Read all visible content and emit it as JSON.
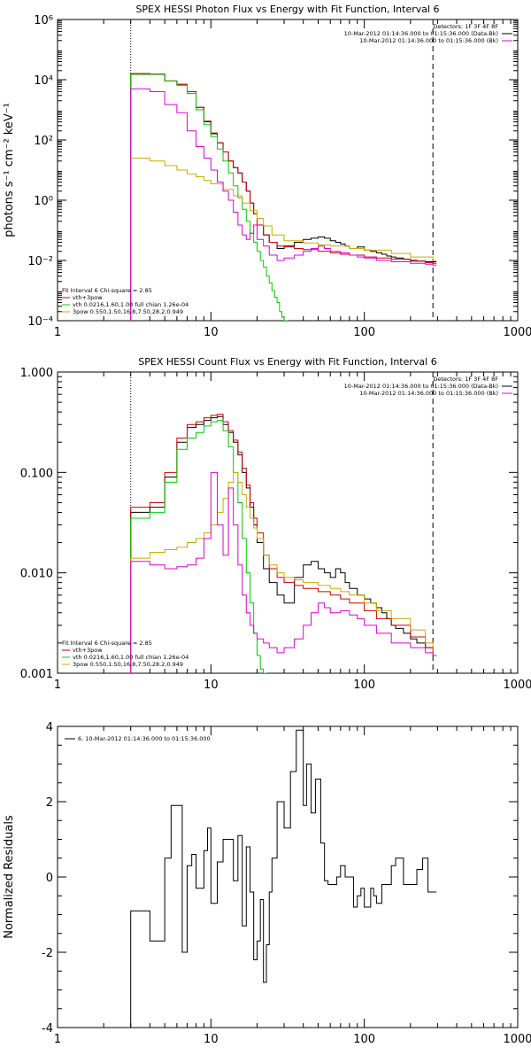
{
  "chart_data": [
    {
      "type": "line",
      "title": "SPEX HESSI Photon Flux vs Energy with Fit Function, Interval 6",
      "ylabel": "photons s⁻¹ cm⁻² keV⁻¹",
      "xlabel": "",
      "xscale": "log",
      "yscale": "log",
      "xlim": [
        1,
        1000
      ],
      "ylim": [
        0.0001,
        1000000
      ],
      "x_ticks": [
        1,
        10,
        100,
        1000
      ],
      "x_tick_labels": [
        "1",
        "10",
        "100",
        "1000"
      ],
      "y_ticks": [
        0.0001,
        0.01,
        1,
        100,
        10000,
        1000000
      ],
      "y_tick_labels": [
        "10⁻⁴",
        "10⁻²",
        "10⁰",
        "10²",
        "10⁴",
        "10⁶"
      ],
      "vlines": [
        {
          "x": 3.0,
          "style": "dotted"
        },
        {
          "x": 280,
          "style": "dashed"
        }
      ],
      "legend_tr": [
        "Detectors: 1F 3F 4F 8F",
        "10-Mar-2012 01:14:36.000 to 01:15:36.000 (Data-Bk)",
        "10-Mar-2012 01:14:36.000 to 01:15:36.000 (Bk)"
      ],
      "legend_bl": [
        "Fit Interval 6   Chi-square = 2.85",
        "vth+3pow",
        "vth 0.0216,1.60,1.00  full chian 1.26e-04",
        "3pow 0.550,1.50,16.8,7.50,28.2,0.949"
      ],
      "series": [
        {
          "name": "10-Mar-2012 01:14:36.000 to 01:15:36.000 (Data-Bk)",
          "color": "#000000",
          "x": [
            3.0,
            4.0,
            5.0,
            6.0,
            7.0,
            8.0,
            9.0,
            10.0,
            11.0,
            12.0,
            13.0,
            14.0,
            15.0,
            16.0,
            17.0,
            18.0,
            19.0,
            20.0,
            22.0,
            24.0,
            27.0,
            30.0,
            35.0,
            40.0,
            45.0,
            50.0,
            55.0,
            60.0,
            65.0,
            70.0,
            75.0,
            80.0,
            90.0,
            100.0,
            110.0,
            120.0,
            130.0,
            140.0,
            150.0,
            160.0,
            180.0,
            200.0,
            220.0,
            250.0,
            280.0
          ],
          "y": [
            15000,
            15000,
            9000,
            7000,
            4000,
            1200,
            400,
            160,
            80,
            40,
            20,
            12,
            8,
            4,
            2,
            0.8,
            0.35,
            0.15,
            0.07,
            0.04,
            0.025,
            0.03,
            0.04,
            0.05,
            0.055,
            0.06,
            0.055,
            0.045,
            0.04,
            0.035,
            0.03,
            0.025,
            0.028,
            0.022,
            0.02,
            0.018,
            0.016,
            0.014,
            0.013,
            0.012,
            0.011,
            0.01,
            0.0095,
            0.009,
            0.009
          ]
        },
        {
          "name": "vth+3pow",
          "color": "#cc0000",
          "x": [
            3.0,
            4.0,
            5.0,
            6.0,
            7.0,
            8.0,
            9.0,
            10.0,
            11.0,
            12.0,
            13.0,
            14.0,
            15.0,
            16.0,
            17.0,
            18.0,
            19.0,
            20.0,
            22.0,
            24.0,
            27.0,
            30.0,
            35.0,
            40.0,
            50.0,
            60.0,
            70.0,
            80.0,
            100.0,
            120.0,
            150.0,
            200.0,
            250.0,
            280.0
          ],
          "y": [
            16000,
            15500,
            9200,
            7000,
            4000,
            1200,
            420,
            170,
            80,
            40,
            20,
            12,
            8,
            4,
            2,
            0.8,
            0.35,
            0.15,
            0.07,
            0.04,
            0.03,
            0.028,
            0.025,
            0.023,
            0.02,
            0.018,
            0.016,
            0.015,
            0.013,
            0.012,
            0.011,
            0.0095,
            0.0085,
            0.008
          ]
        },
        {
          "name": "vth",
          "color": "#00cc00",
          "x": [
            3.0,
            4.0,
            5.0,
            6.0,
            7.0,
            8.0,
            9.0,
            10.0,
            11.0,
            12.0,
            13.0,
            14.0,
            15.0,
            16.0,
            17.0,
            18.0,
            19.0,
            20.0,
            21.0,
            22.0,
            23.0,
            24.0,
            25.0,
            26.0,
            27.0,
            28.0,
            29.0,
            30.0
          ],
          "y": [
            15000,
            15000,
            9000,
            6500,
            3500,
            1000,
            320,
            130,
            50,
            20,
            8,
            3,
            1.2,
            0.5,
            0.2,
            0.08,
            0.04,
            0.02,
            0.01,
            0.006,
            0.003,
            0.0018,
            0.001,
            0.0006,
            0.0004,
            0.0002,
            0.00013,
            0.0001
          ]
        },
        {
          "name": "3pow",
          "color": "#ccaa00",
          "x": [
            3.0,
            4.0,
            5.0,
            6.0,
            7.0,
            8.0,
            9.0,
            10.0,
            12.0,
            14.0,
            16.0,
            18.0,
            20.0,
            22.0,
            25.0,
            30.0,
            40.0,
            50.0,
            60.0,
            80.0,
            100.0,
            150.0,
            200.0,
            280.0
          ],
          "y": [
            25,
            20,
            14,
            10,
            7.5,
            6,
            4.5,
            3.5,
            2.3,
            1.4,
            0.8,
            0.45,
            0.25,
            0.14,
            0.07,
            0.045,
            0.038,
            0.033,
            0.03,
            0.025,
            0.022,
            0.017,
            0.013,
            0.01
          ]
        },
        {
          "name": "10-Mar-2012 01:14:36.000 to 01:15:36.000 (Bk)",
          "color": "#dd00dd",
          "x": [
            3.0,
            4.0,
            5.0,
            6.0,
            7.0,
            8.0,
            9.0,
            10.0,
            11.0,
            12.0,
            13.0,
            14.0,
            15.0,
            16.0,
            17.0,
            18.0,
            19.0,
            20.0,
            22.0,
            24.0,
            27.0,
            30.0,
            35.0,
            40.0,
            45.0,
            50.0,
            55.0,
            60.0,
            70.0,
            80.0,
            90.0,
            100.0,
            120.0,
            150.0,
            200.0,
            250.0,
            280.0
          ],
          "y": [
            5000,
            4000,
            1500,
            800,
            200,
            60,
            25,
            10,
            4,
            2,
            1,
            0.4,
            0.15,
            0.07,
            0.05,
            0.08,
            0.15,
            0.05,
            0.03,
            0.015,
            0.01,
            0.012,
            0.015,
            0.02,
            0.025,
            0.03,
            0.025,
            0.02,
            0.018,
            0.015,
            0.013,
            0.012,
            0.01,
            0.009,
            0.008,
            0.0075,
            0.007
          ]
        }
      ]
    },
    {
      "type": "line",
      "title": "SPEX HESSI Count Flux vs Energy with Fit Function, Interval 6",
      "ylabel": "",
      "xlabel": "",
      "xscale": "log",
      "yscale": "log",
      "xlim": [
        1,
        1000
      ],
      "ylim": [
        0.001,
        1.0
      ],
      "x_ticks": [
        1,
        10,
        100,
        1000
      ],
      "x_tick_labels": [
        "1",
        "10",
        "100",
        "1000"
      ],
      "y_ticks": [
        0.001,
        0.01,
        0.1,
        1.0
      ],
      "y_tick_labels": [
        "0.001",
        "0.010",
        "0.100",
        "1.000"
      ],
      "vlines": [
        {
          "x": 3.0,
          "style": "dotted"
        },
        {
          "x": 280,
          "style": "dashed"
        }
      ],
      "legend_tr": [
        "Detectors: 1F 3F 4F 8F",
        "10-Mar-2012 01:14:36.000 to 01:15:36.000 (Data-Bk)",
        "10-Mar-2012 01:14:36.000 to 01:15:36.000 (Bk)"
      ],
      "legend_bl": [
        "Fit Interval 6   Chi-square = 2.85",
        "vth+3pow",
        "vth 0.0216,1.60,1.00  full chian 1.26e-04",
        "3pow 0.550,1.50,16.8,7.50,28.2,0.949"
      ],
      "series": [
        {
          "name": "10-Mar-2012 01:14:36.000 to 01:15:36.000 (Data-Bk)",
          "color": "#000000",
          "x": [
            3.0,
            4.0,
            5.0,
            6.0,
            7.0,
            8.0,
            9.0,
            10.0,
            11.0,
            12.0,
            13.0,
            14.0,
            15.0,
            16.0,
            17.0,
            18.0,
            19.0,
            20.0,
            22.0,
            24.0,
            27.0,
            30.0,
            35.0,
            40.0,
            45.0,
            50.0,
            55.0,
            60.0,
            65.0,
            70.0,
            75.0,
            80.0,
            90.0,
            100.0,
            110.0,
            120.0,
            130.0,
            140.0,
            150.0,
            160.0,
            180.0,
            200.0,
            220.0,
            250.0,
            280.0
          ],
          "y": [
            0.04,
            0.045,
            0.09,
            0.2,
            0.28,
            0.3,
            0.33,
            0.35,
            0.36,
            0.3,
            0.25,
            0.2,
            0.15,
            0.1,
            0.07,
            0.045,
            0.03,
            0.02,
            0.011,
            0.008,
            0.006,
            0.005,
            0.009,
            0.012,
            0.013,
            0.011,
            0.01,
            0.009,
            0.011,
            0.01,
            0.008,
            0.007,
            0.006,
            0.0055,
            0.005,
            0.0045,
            0.004,
            0.0035,
            0.003,
            0.0028,
            0.0025,
            0.0022,
            0.002,
            0.0018,
            0.0015
          ]
        },
        {
          "name": "vth+3pow",
          "color": "#cc0000",
          "x": [
            3.0,
            4.0,
            5.0,
            6.0,
            7.0,
            8.0,
            9.0,
            10.0,
            11.0,
            12.0,
            13.0,
            14.0,
            15.0,
            16.0,
            17.0,
            18.0,
            19.0,
            20.0,
            22.0,
            24.0,
            27.0,
            30.0,
            35.0,
            40.0,
            50.0,
            60.0,
            70.0,
            80.0,
            100.0,
            120.0,
            150.0,
            200.0,
            250.0,
            280.0
          ],
          "y": [
            0.045,
            0.05,
            0.1,
            0.22,
            0.3,
            0.32,
            0.35,
            0.37,
            0.38,
            0.32,
            0.26,
            0.21,
            0.16,
            0.11,
            0.075,
            0.05,
            0.035,
            0.025,
            0.015,
            0.011,
            0.009,
            0.008,
            0.0075,
            0.007,
            0.0065,
            0.006,
            0.0055,
            0.005,
            0.0042,
            0.0035,
            0.003,
            0.0023,
            0.0018,
            0.0015
          ]
        },
        {
          "name": "vth",
          "color": "#00cc00",
          "x": [
            3.0,
            4.0,
            5.0,
            6.0,
            7.0,
            8.0,
            9.0,
            10.0,
            11.0,
            12.0,
            13.0,
            14.0,
            15.0,
            16.0,
            17.0,
            18.0,
            19.0,
            20.0,
            21.0,
            22.0
          ],
          "y": [
            0.035,
            0.04,
            0.08,
            0.17,
            0.22,
            0.25,
            0.29,
            0.32,
            0.33,
            0.26,
            0.18,
            0.1,
            0.05,
            0.022,
            0.01,
            0.005,
            0.0025,
            0.0015,
            0.0011,
            0.001
          ]
        },
        {
          "name": "3pow",
          "color": "#ccaa00",
          "x": [
            3.0,
            4.0,
            5.0,
            6.0,
            7.0,
            8.0,
            9.0,
            10.0,
            11.0,
            12.0,
            13.0,
            14.0,
            15.0,
            16.0,
            17.0,
            18.0,
            19.0,
            20.0,
            22.0,
            24.0,
            27.0,
            30.0,
            35.0,
            40.0,
            50.0,
            60.0,
            70.0,
            80.0,
            100.0,
            120.0,
            150.0,
            200.0,
            250.0,
            280.0
          ],
          "y": [
            0.014,
            0.016,
            0.017,
            0.018,
            0.02,
            0.022,
            0.025,
            0.03,
            0.04,
            0.055,
            0.08,
            0.1,
            0.08,
            0.06,
            0.045,
            0.035,
            0.028,
            0.022,
            0.015,
            0.012,
            0.01,
            0.009,
            0.0085,
            0.008,
            0.0075,
            0.007,
            0.0065,
            0.006,
            0.005,
            0.0042,
            0.0035,
            0.0027,
            0.002,
            0.0015
          ]
        },
        {
          "name": "10-Mar-2012 01:14:36.000 to 01:15:36.000 (Bk)",
          "color": "#dd00dd",
          "x": [
            3.0,
            4.0,
            5.0,
            6.0,
            7.0,
            8.0,
            9.0,
            10.0,
            11.0,
            12.0,
            13.0,
            14.0,
            15.0,
            16.0,
            17.0,
            18.0,
            19.0,
            20.0,
            22.0,
            24.0,
            27.0,
            30.0,
            35.0,
            40.0,
            45.0,
            50.0,
            55.0,
            60.0,
            70.0,
            80.0,
            90.0,
            100.0,
            120.0,
            150.0,
            200.0,
            250.0,
            280.0
          ],
          "y": [
            0.013,
            0.012,
            0.011,
            0.0115,
            0.012,
            0.014,
            0.022,
            0.1,
            0.03,
            0.015,
            0.07,
            0.03,
            0.012,
            0.006,
            0.004,
            0.003,
            0.0025,
            0.0022,
            0.002,
            0.0018,
            0.0016,
            0.0018,
            0.0022,
            0.003,
            0.004,
            0.005,
            0.0045,
            0.004,
            0.0042,
            0.0038,
            0.0035,
            0.003,
            0.0025,
            0.002,
            0.0018,
            0.0016,
            0.0015
          ]
        }
      ]
    },
    {
      "type": "line",
      "title": "",
      "ylabel": "Normalized Residuals",
      "xlabel": "",
      "xscale": "log",
      "yscale": "linear",
      "xlim": [
        1,
        1000
      ],
      "ylim": [
        -4,
        4
      ],
      "x_ticks": [
        1,
        10,
        100,
        1000
      ],
      "x_tick_labels": [
        "1",
        "10",
        "100",
        "1000"
      ],
      "y_ticks": [
        -4,
        -2,
        0,
        2,
        4
      ],
      "y_tick_labels": [
        "-4",
        "-2",
        "0",
        "2",
        "4"
      ],
      "vlines": [],
      "legend_tl": [
        "6. 10-Mar-2012 01:14:36.000 to 01:15:36.000"
      ],
      "series": [
        {
          "name": "6. 10-Mar-2012 01:14:36.000 to 01:15:36.000",
          "color": "#000000",
          "x": [
            3.0,
            4.0,
            5.0,
            5.5,
            6.0,
            6.5,
            7.0,
            7.5,
            8.0,
            8.5,
            9.0,
            9.5,
            10.0,
            11.0,
            12.0,
            13.0,
            14.0,
            15.0,
            16.0,
            17.0,
            18.0,
            19.0,
            20.0,
            21.0,
            22.0,
            23.0,
            24.0,
            25.0,
            27.0,
            30.0,
            33.0,
            36.0,
            40.0,
            42.0,
            45.0,
            48.0,
            52.0,
            55.0,
            58.0,
            62.0,
            66.0,
            70.0,
            75.0,
            80.0,
            85.0,
            90.0,
            95.0,
            100.0,
            105.0,
            110.0,
            115.0,
            120.0,
            130.0,
            140.0,
            150.0,
            160.0,
            170.0,
            180.0,
            200.0,
            220.0,
            240.0,
            260.0,
            280.0
          ],
          "y": [
            -0.9,
            -1.7,
            0.5,
            1.9,
            1.9,
            -2.0,
            0.3,
            0.6,
            -0.3,
            -0.3,
            0.7,
            1.3,
            -0.7,
            0.4,
            1.0,
            1.0,
            -0.1,
            1.1,
            -1.3,
            0.8,
            -0.4,
            -2.2,
            -1.7,
            -0.6,
            -2.8,
            -1.8,
            -0.4,
            0.5,
            2.0,
            1.3,
            2.8,
            3.9,
            1.9,
            3.0,
            1.7,
            2.6,
            0.9,
            -0.1,
            -0.2,
            -0.2,
            0.0,
            0.3,
            0.0,
            0.0,
            -0.8,
            -0.5,
            -0.3,
            -0.8,
            -0.8,
            -0.3,
            -0.5,
            -0.7,
            -0.2,
            -0.2,
            0.3,
            0.5,
            0.5,
            -0.2,
            -0.2,
            0.2,
            0.5,
            -0.4,
            -0.4
          ]
        }
      ]
    }
  ]
}
